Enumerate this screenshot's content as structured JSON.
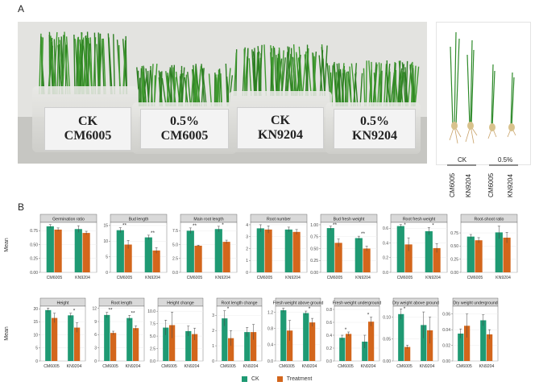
{
  "figure": {
    "panel_a_label": "A",
    "panel_b_label": "B",
    "box_labels": [
      {
        "line1": "CK",
        "line2": "CM6005"
      },
      {
        "line1": "0.5%",
        "line2": "CM6005"
      },
      {
        "line1": "CK",
        "line2": "KN9204"
      },
      {
        "line1": "0.5%",
        "line2": "KN9204"
      }
    ],
    "seedling_labels": {
      "ck": "CK",
      "treatment": "0.5%",
      "varieties": [
        "CM6005",
        "KN9204",
        "CM6005",
        "KN9204"
      ]
    },
    "y_label": "Mean",
    "legend": [
      {
        "label": "CK",
        "color": "#1f9a73"
      },
      {
        "label": "Treatment",
        "color": "#d3661c"
      }
    ]
  },
  "chart_data": [
    {
      "type": "bar",
      "title": "Germination ratio",
      "categories": [
        "CM6005",
        "KN9204"
      ],
      "ylim": [
        0,
        0.9
      ],
      "yticks": [
        "0.00",
        "0.25",
        "0.50",
        "0.75"
      ],
      "series": [
        {
          "name": "CK",
          "values": [
            0.83,
            0.78
          ]
        },
        {
          "name": "Treatment",
          "values": [
            0.77,
            0.71
          ]
        }
      ],
      "errors": [
        [
          0.03,
          0.06
        ],
        [
          0.03,
          0.03
        ]
      ],
      "sig": [
        "",
        ""
      ]
    },
    {
      "type": "bar",
      "title": "Bud length",
      "categories": [
        "CM6005",
        "KN9204"
      ],
      "ylim": [
        0,
        16
      ],
      "yticks": [
        "0",
        "5",
        "10",
        "15"
      ],
      "series": [
        {
          "name": "CK",
          "values": [
            13.5,
            11.2
          ]
        },
        {
          "name": "Treatment",
          "values": [
            8.9,
            7.0
          ]
        }
      ],
      "errors": [
        [
          0.8,
          0.7
        ],
        [
          1.3,
          0.9
        ]
      ],
      "sig": [
        "**",
        "**"
      ]
    },
    {
      "type": "bar",
      "title": "Main root length",
      "categories": [
        "CM6005",
        "KN9204"
      ],
      "ylim": [
        0,
        9
      ],
      "yticks": [
        "0.0",
        "2.5",
        "5.0",
        "7.5"
      ],
      "series": [
        {
          "name": "CK",
          "values": [
            7.5,
            7.8
          ]
        },
        {
          "name": "Treatment",
          "values": [
            4.8,
            5.5
          ]
        }
      ],
      "errors": [
        [
          0.5,
          0.5
        ],
        [
          0.1,
          0.3
        ]
      ],
      "sig": [
        "**",
        "*"
      ]
    },
    {
      "type": "bar",
      "title": "Root number",
      "categories": [
        "CM6005",
        "KN9204"
      ],
      "ylim": [
        0,
        4.2
      ],
      "yticks": [
        "0",
        "1",
        "2",
        "3",
        "4"
      ],
      "series": [
        {
          "name": "CK",
          "values": [
            3.7,
            3.6
          ]
        },
        {
          "name": "Treatment",
          "values": [
            3.6,
            3.4
          ]
        }
      ],
      "errors": [
        [
          0.3,
          0.2
        ],
        [
          0.3,
          0.2
        ]
      ],
      "sig": [
        "",
        ""
      ]
    },
    {
      "type": "bar",
      "title": "Bud fresh weight",
      "categories": [
        "CM6005",
        "KN9204"
      ],
      "ylim": [
        0,
        1.05
      ],
      "yticks": [
        "0.00",
        "0.25",
        "0.50",
        "0.75",
        "1.00"
      ],
      "series": [
        {
          "name": "CK",
          "values": [
            0.93,
            0.72
          ]
        },
        {
          "name": "Treatment",
          "values": [
            0.62,
            0.5
          ]
        }
      ],
      "errors": [
        [
          0.04,
          0.04
        ],
        [
          0.08,
          0.05
        ]
      ],
      "sig": [
        "**",
        "**"
      ]
    },
    {
      "type": "bar",
      "title": "Root fresh weight",
      "categories": [
        "CM6005",
        "KN9204"
      ],
      "ylim": [
        0,
        0.68
      ],
      "yticks": [
        "0.0",
        "0.2",
        "0.4",
        "0.6"
      ],
      "series": [
        {
          "name": "CK",
          "values": [
            0.63,
            0.56
          ]
        },
        {
          "name": "Treatment",
          "values": [
            0.38,
            0.33
          ]
        }
      ],
      "errors": [
        [
          0.02,
          0.05
        ],
        [
          0.09,
          0.06
        ]
      ],
      "sig": [
        "*",
        "*"
      ]
    },
    {
      "type": "bar",
      "title": "Root-shoot ratio",
      "categories": [
        "CM6005",
        "KN9204"
      ],
      "ylim": [
        0,
        0.95
      ],
      "yticks": [
        "0.00",
        "0.25",
        "0.50",
        "0.75"
      ],
      "series": [
        {
          "name": "CK",
          "values": [
            0.68,
            0.76
          ]
        },
        {
          "name": "Treatment",
          "values": [
            0.61,
            0.66
          ]
        }
      ],
      "errors": [
        [
          0.04,
          0.12
        ],
        [
          0.05,
          0.1
        ]
      ],
      "sig": [
        "",
        ""
      ]
    },
    {
      "type": "bar",
      "title": "Height",
      "categories": [
        "CM6005",
        "KN9204"
      ],
      "ylim": [
        0,
        21
      ],
      "yticks": [
        "0",
        "5",
        "10",
        "15",
        "20"
      ],
      "series": [
        {
          "name": "CK",
          "values": [
            19.5,
            17.5
          ]
        },
        {
          "name": "Treatment",
          "values": [
            16.5,
            12.8
          ]
        }
      ],
      "errors": [
        [
          0.8,
          0.8
        ],
        [
          1.8,
          1.8
        ]
      ],
      "sig": [
        "",
        "*"
      ]
    },
    {
      "type": "bar",
      "title": "Root length",
      "categories": [
        "CM6005",
        "KN9204"
      ],
      "ylim": [
        0,
        12.5
      ],
      "yticks": [
        "0",
        "3",
        "6",
        "9",
        "12"
      ],
      "series": [
        {
          "name": "CK",
          "values": [
            10.5,
            9.8
          ]
        },
        {
          "name": "Treatment",
          "values": [
            6.4,
            7.5
          ]
        }
      ],
      "errors": [
        [
          0.6,
          0.6
        ],
        [
          0.4,
          0.5
        ]
      ],
      "sig": [
        "**",
        "**"
      ]
    },
    {
      "type": "bar",
      "title": "Height change",
      "categories": [
        "CM6005",
        "KN9204"
      ],
      "ylim": [
        0,
        11
      ],
      "yticks": [
        "0.0",
        "2.5",
        "5.0",
        "7.5",
        "10.0"
      ],
      "series": [
        {
          "name": "CK",
          "values": [
            6.7,
            6.0
          ]
        },
        {
          "name": "Treatment",
          "values": [
            7.2,
            5.4
          ]
        }
      ],
      "errors": [
        [
          1.5,
          1.0
        ],
        [
          2.6,
          1.2
        ]
      ],
      "sig": [
        "",
        ""
      ]
    },
    {
      "type": "bar",
      "title": "Root length change",
      "categories": [
        "CM6005",
        "KN9204"
      ],
      "ylim": [
        0,
        3.6
      ],
      "yticks": [
        "0",
        "1",
        "2",
        "3"
      ],
      "series": [
        {
          "name": "CK",
          "values": [
            2.8,
            1.9
          ]
        },
        {
          "name": "Treatment",
          "values": [
            1.5,
            1.9
          ]
        }
      ],
      "errors": [
        [
          0.5,
          0.3
        ],
        [
          0.5,
          0.5
        ]
      ],
      "sig": [
        "*",
        ""
      ]
    },
    {
      "type": "bar",
      "title": "Fresh weight above ground",
      "categories": [
        "CM6005",
        "KN9204"
      ],
      "ylim": [
        0,
        1.35
      ],
      "yticks": [
        "0.0",
        "0.4",
        "0.8",
        "1.2"
      ],
      "series": [
        {
          "name": "CK",
          "values": [
            1.25,
            1.18
          ]
        },
        {
          "name": "Treatment",
          "values": [
            0.75,
            0.95
          ]
        }
      ],
      "errors": [
        [
          0.05,
          0.05
        ],
        [
          0.25,
          0.1
        ]
      ],
      "sig": [
        "",
        "*"
      ]
    },
    {
      "type": "bar",
      "title": "Fresh weight underground",
      "categories": [
        "CM6005",
        "KN9204"
      ],
      "ylim": [
        0,
        0.85
      ],
      "yticks": [
        "0.0",
        "0.2",
        "0.4",
        "0.6",
        "0.8"
      ],
      "series": [
        {
          "name": "CK",
          "values": [
            0.36,
            0.3
          ]
        },
        {
          "name": "Treatment",
          "values": [
            0.42,
            0.61
          ]
        }
      ],
      "errors": [
        [
          0.04,
          0.1
        ],
        [
          0.03,
          0.07
        ]
      ],
      "sig": [
        "*",
        "*"
      ]
    },
    {
      "type": "bar",
      "title": "Dry weight above ground",
      "categories": [
        "CM6005",
        "KN9204"
      ],
      "ylim": [
        0,
        0.125
      ],
      "yticks": [
        "0.00",
        "0.05",
        "0.10"
      ],
      "series": [
        {
          "name": "CK",
          "values": [
            0.107,
            0.082
          ]
        },
        {
          "name": "Treatment",
          "values": [
            0.032,
            0.07
          ]
        }
      ],
      "errors": [
        [
          0.012,
          0.03
        ],
        [
          0.004,
          0.03
        ]
      ],
      "sig": [
        "*",
        ""
      ]
    },
    {
      "type": "bar",
      "title": "Dry weight underground",
      "categories": [
        "CM6005",
        "KN9204"
      ],
      "ylim": [
        0,
        0.07
      ],
      "yticks": [
        "0.00",
        "0.02",
        "0.04",
        "0.06"
      ],
      "series": [
        {
          "name": "CK",
          "values": [
            0.035,
            0.052
          ]
        },
        {
          "name": "Treatment",
          "values": [
            0.045,
            0.034
          ]
        }
      ],
      "errors": [
        [
          0.006,
          0.007
        ],
        [
          0.015,
          0.006
        ]
      ],
      "sig": [
        "",
        ""
      ]
    }
  ]
}
